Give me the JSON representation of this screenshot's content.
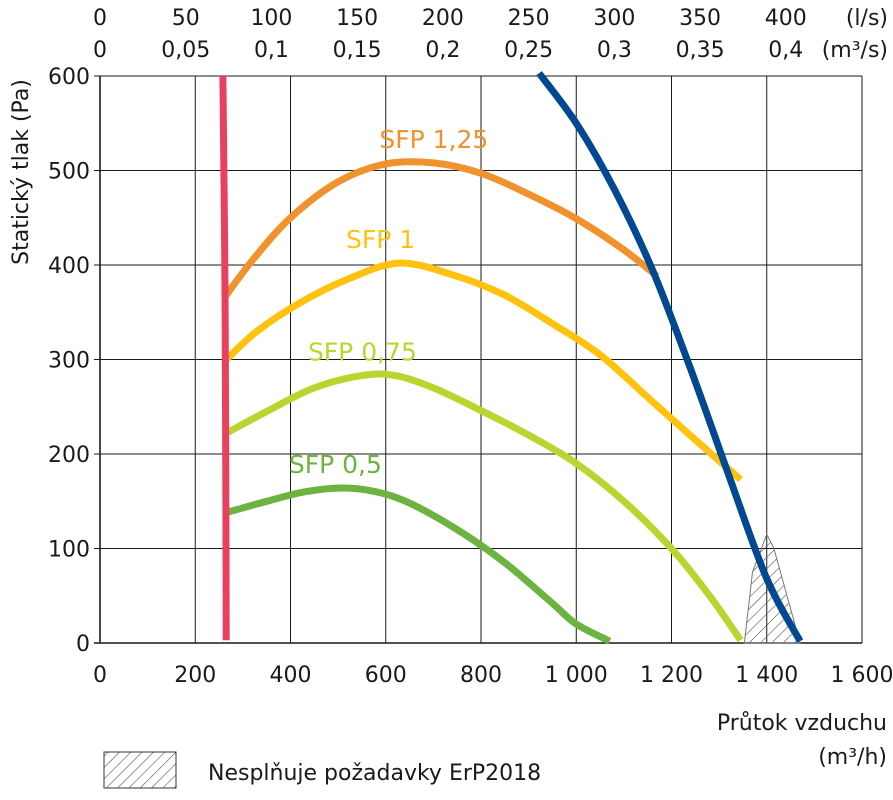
{
  "chart_data": {
    "type": "line",
    "x_axis": {
      "label_line1": "Průtok vzduchu",
      "label_line2": "(m³/h)",
      "range": [
        0,
        1600
      ],
      "ticks": [
        0,
        200,
        400,
        600,
        800,
        1000,
        1200,
        1400,
        1600
      ],
      "tick_labels": [
        "0",
        "200",
        "400",
        "600",
        "800",
        "1 000",
        "1 200",
        "1 400",
        "1 600"
      ]
    },
    "y_axis": {
      "label": "Statický tlak (Pa)",
      "range": [
        0,
        600
      ],
      "ticks": [
        0,
        100,
        200,
        300,
        400,
        500,
        600
      ],
      "tick_labels": [
        "0",
        "100",
        "200",
        "300",
        "400",
        "500",
        "600"
      ]
    },
    "top_axis_ls": {
      "unit": "(l/s)",
      "ticks": [
        0,
        50,
        100,
        150,
        200,
        250,
        300,
        350,
        400
      ],
      "tick_labels": [
        "0",
        "50",
        "100",
        "150",
        "200",
        "250",
        "300",
        "350",
        "400"
      ]
    },
    "top_axis_m3s": {
      "unit": "(m³/s)",
      "ticks": [
        0,
        0.05,
        0.1,
        0.15,
        0.2,
        0.25,
        0.3,
        0.35,
        0.4
      ],
      "tick_labels": [
        "0",
        "0,05",
        "0,1",
        "0,15",
        "0,2",
        "0,25",
        "0,3",
        "0,35",
        "0,4"
      ]
    },
    "grid": true,
    "series": [
      {
        "name": "SFP 1,25",
        "color": "#f0922e",
        "x": [
          265,
          320,
          400,
          500,
          600,
          700,
          800,
          900,
          1000,
          1100,
          1170
        ],
        "y": [
          368,
          405,
          450,
          488,
          507,
          508,
          497,
          475,
          449,
          416,
          388
        ]
      },
      {
        "name": "SFP 1",
        "color": "#ffc20e",
        "x": [
          265,
          330,
          420,
          520,
          630,
          750,
          850,
          950,
          1050,
          1150,
          1250,
          1345
        ],
        "y": [
          300,
          330,
          360,
          385,
          402,
          388,
          368,
          338,
          305,
          260,
          215,
          173
        ]
      },
      {
        "name": "SFP 0,75",
        "color": "#bcd430",
        "x": [
          265,
          350,
          450,
          550,
          620,
          700,
          800,
          900,
          1000,
          1100,
          1200,
          1280,
          1345
        ],
        "y": [
          222,
          245,
          270,
          283,
          283,
          270,
          246,
          220,
          190,
          150,
          100,
          50,
          3
        ]
      },
      {
        "name": "SFP 0,5",
        "color": "#6cb33f",
        "x": [
          265,
          350,
          430,
          510,
          580,
          650,
          750,
          850,
          950,
          1000,
          1070
        ],
        "y": [
          138,
          150,
          160,
          164,
          160,
          148,
          120,
          85,
          42,
          20,
          2
        ]
      },
      {
        "color": "#e8415f",
        "x": [
          258,
          262,
          264,
          265
        ],
        "y": [
          600,
          400,
          200,
          3
        ]
      },
      {
        "color": "#00488f",
        "x": [
          922,
          1000,
          1080,
          1160,
          1240,
          1320,
          1400,
          1470
        ],
        "y": [
          603,
          550,
          480,
          395,
          290,
          178,
          68,
          2
        ]
      }
    ],
    "hatched_region": {
      "x": [
        1353,
        1370,
        1400,
        1415,
        1470
      ],
      "y": [
        0,
        75,
        115,
        100,
        0
      ]
    }
  },
  "legend": {
    "hatch_text": "Nesplňuje požadavky ErP2018"
  },
  "colors": {
    "grid": "#1a1a1a",
    "hatch": "#555555"
  }
}
